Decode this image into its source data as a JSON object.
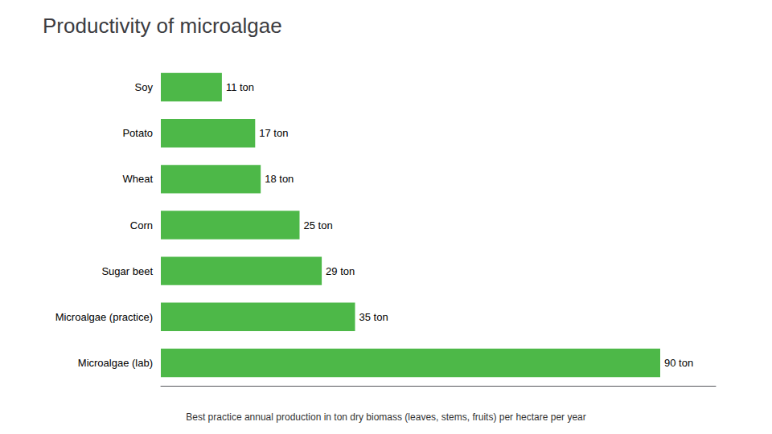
{
  "chart_data": {
    "type": "bar",
    "orientation": "horizontal",
    "title": "Productivity of microalgae",
    "subtitle": "Best practice annual production in ton dry biomass (leaves, stems, fruits) per hectare per year",
    "categories": [
      "Soy",
      "Potato",
      "Wheat",
      "Corn",
      "Sugar beet",
      "Microalgae (practice)",
      "Microalgae (lab)"
    ],
    "values": [
      11,
      17,
      18,
      25,
      29,
      35,
      90
    ],
    "value_labels": [
      "11 ton",
      "17 ton",
      "18 ton",
      "25 ton",
      "29 ton",
      "35 ton",
      "90 ton"
    ],
    "data_labels": true,
    "color": "#4db848",
    "xlim": [
      0,
      100
    ],
    "tick_labels": "y",
    "grid": false
  }
}
